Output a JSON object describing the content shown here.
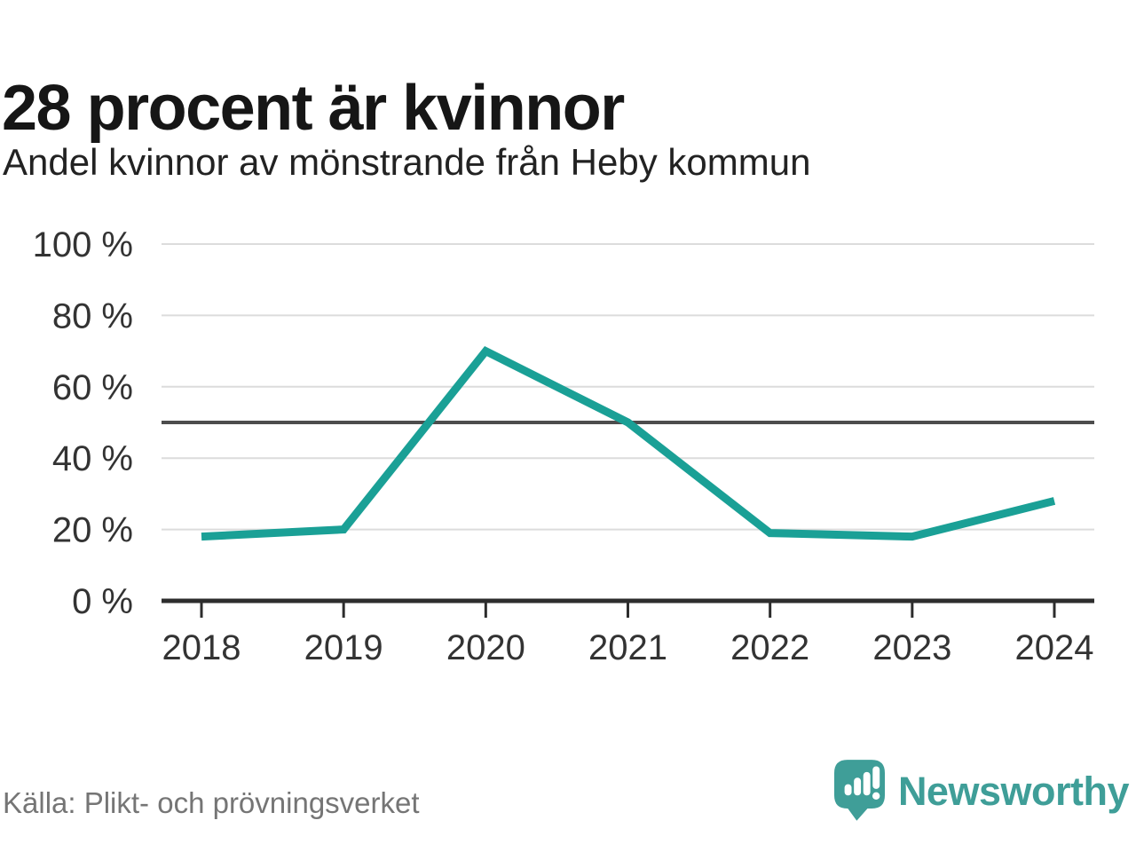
{
  "header": {
    "title": "28 procent är kvinnor",
    "subtitle": "Andel kvinnor av mönstrande från Heby kommun"
  },
  "chart_data": {
    "type": "line",
    "title": "28 procent är kvinnor",
    "subtitle": "Andel kvinnor av mönstrande från Heby kommun",
    "categories": [
      "2018",
      "2019",
      "2020",
      "2021",
      "2022",
      "2023",
      "2024"
    ],
    "series": [
      {
        "name": "Andel kvinnor",
        "values": [
          18,
          20,
          70,
          50,
          19,
          18,
          28
        ]
      }
    ],
    "xlabel": "",
    "ylabel": "",
    "ylim": [
      0,
      100
    ],
    "yticks": [
      0,
      20,
      40,
      60,
      80,
      100
    ],
    "ytick_suffix": " %",
    "reference_line": 50,
    "grid": true,
    "legend": "none",
    "line_color": "#1aa096",
    "reference_color": "#4d4d4d",
    "grid_color": "#dcdcdc",
    "axis_color": "#2d2d2d",
    "tick_label_color": "#333333"
  },
  "footer": {
    "source": "Källa: Plikt- och prövningsverket",
    "logo_text": "Newsworthy",
    "logo_color": "#3f9e98"
  }
}
